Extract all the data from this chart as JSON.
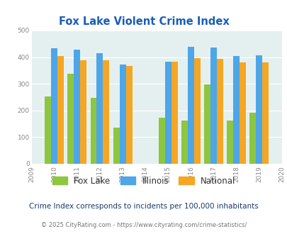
{
  "title": "Fox Lake Violent Crime Index",
  "years": [
    2010,
    2011,
    2012,
    2013,
    2015,
    2016,
    2017,
    2018,
    2019
  ],
  "fox_lake": [
    253,
    338,
    248,
    135,
    173,
    163,
    299,
    163,
    192
  ],
  "illinois": [
    433,
    427,
    414,
    372,
    383,
    438,
    437,
    405,
    408
  ],
  "national": [
    405,
    387,
    387,
    366,
    383,
    397,
    394,
    380,
    380
  ],
  "fox_lake_color": "#8dc63f",
  "illinois_color": "#4da6e8",
  "national_color": "#f5a623",
  "bg_color": "#e4f0f0",
  "title_color": "#1a5eb8",
  "xlim": [
    2009,
    2020
  ],
  "ylim": [
    0,
    500
  ],
  "yticks": [
    0,
    100,
    200,
    300,
    400,
    500
  ],
  "xticks": [
    2009,
    2010,
    2011,
    2012,
    2013,
    2014,
    2015,
    2016,
    2017,
    2018,
    2019,
    2020
  ],
  "subtitle": "Crime Index corresponds to incidents per 100,000 inhabitants",
  "footer_prefix": "© 2025 CityRating.com - ",
  "footer_url": "https://www.cityrating.com/crime-statistics/",
  "legend_labels": [
    "Fox Lake",
    "Illinois",
    "National"
  ],
  "bar_width": 0.28,
  "subtitle_color": "#1a3a6b",
  "footer_text_color": "#777777",
  "footer_url_color": "#4da6e8"
}
